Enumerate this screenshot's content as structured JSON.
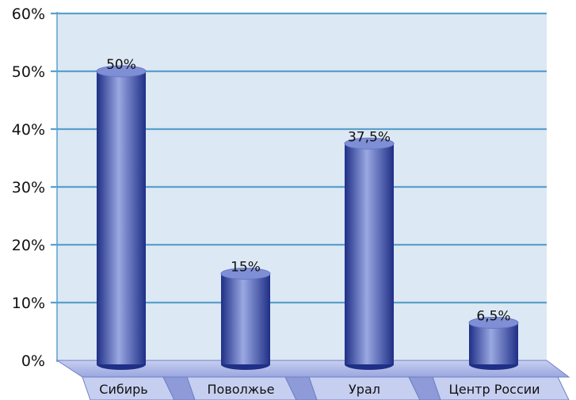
{
  "chart_data": {
    "type": "bar",
    "categories": [
      "Сибирь",
      "Поволжье",
      "Урал",
      "Центр России"
    ],
    "values": [
      50,
      15,
      37.5,
      6.5
    ],
    "data_labels": [
      "50%",
      "15%",
      "37,5%",
      "6,5%"
    ],
    "ylim": [
      0,
      60
    ],
    "y_ticks": [
      0,
      10,
      20,
      30,
      40,
      50,
      60
    ],
    "y_tick_labels": [
      "0%",
      "10%",
      "20%",
      "30%",
      "40%",
      "50%",
      "60%"
    ],
    "grid": true,
    "colors": {
      "plot_background": "#dce8f3",
      "gridline": "#5aa0cc",
      "bar_dark": "#1f2f86",
      "bar_light": "#9aa8e2",
      "floor": "#b3bde9",
      "floor_edge": "#6f7fc7"
    }
  }
}
